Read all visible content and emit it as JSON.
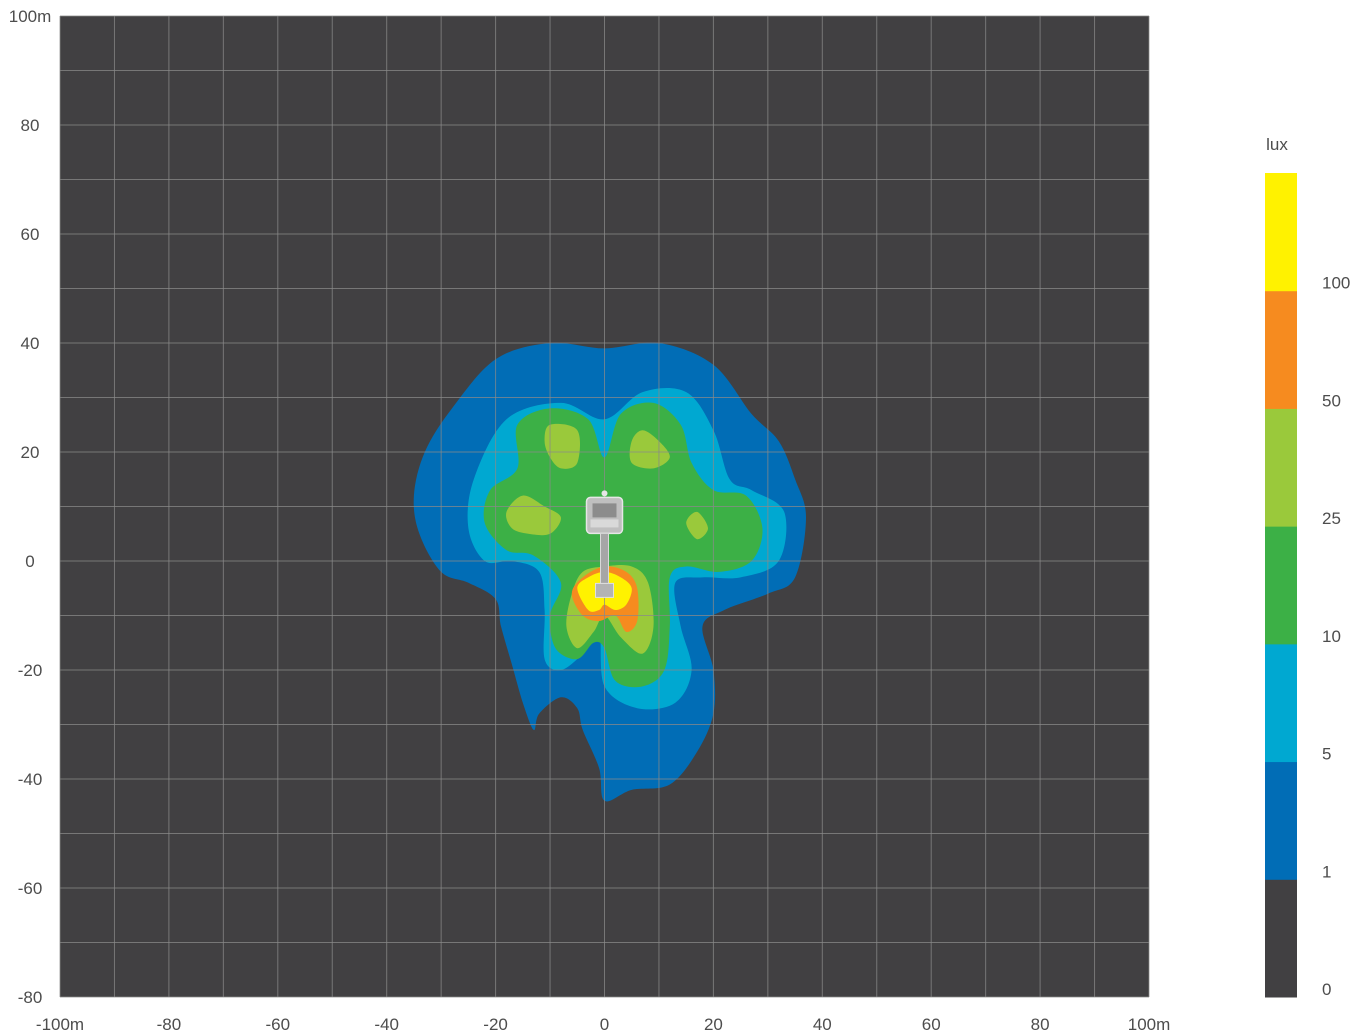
{
  "chart_data": {
    "type": "heatmap",
    "title": "",
    "x_ticks": [
      "-100m",
      "-80",
      "-60",
      "-40",
      "-20",
      "0",
      "20",
      "40",
      "60",
      "80",
      "100m"
    ],
    "y_ticks": [
      "100m",
      "80",
      "60",
      "40",
      "20",
      "0",
      "-20",
      "-40",
      "-60",
      "-80"
    ],
    "xlim": [
      -100,
      100
    ],
    "ylim": [
      -80,
      100
    ],
    "grid_step": 10,
    "grid": true,
    "background_color": "#414042",
    "grid_color": "#8a8a8a",
    "legend": {
      "title": "lux",
      "placement": "right",
      "bands": [
        {
          "from": 0,
          "to": 1,
          "color": "#414042"
        },
        {
          "from": 1,
          "to": 5,
          "color": "#016db6"
        },
        {
          "from": 5,
          "to": 10,
          "color": "#00a8d1"
        },
        {
          "from": 10,
          "to": 25,
          "color": "#3cb046"
        },
        {
          "from": 25,
          "to": 50,
          "color": "#9ac93b"
        },
        {
          "from": 50,
          "to": 100,
          "color": "#f68b1f"
        },
        {
          "from": 100,
          "to": null,
          "color": "#fff200"
        }
      ],
      "labels": [
        "0",
        "1",
        "5",
        "10",
        "25",
        "50",
        "100"
      ]
    },
    "contours": [
      {
        "level": "1",
        "color": "#016db6",
        "points": [
          [
            -35,
            12
          ],
          [
            -33,
            20
          ],
          [
            -28,
            28
          ],
          [
            -20,
            37
          ],
          [
            -10,
            40
          ],
          [
            0,
            39
          ],
          [
            10,
            40
          ],
          [
            20,
            36
          ],
          [
            27,
            27
          ],
          [
            32,
            22
          ],
          [
            35,
            15
          ],
          [
            37,
            8
          ],
          [
            35,
            -3
          ],
          [
            30,
            -6
          ],
          [
            22,
            -9
          ],
          [
            18,
            -12
          ],
          [
            20,
            -20
          ],
          [
            20,
            -28
          ],
          [
            17,
            -35
          ],
          [
            12,
            -41
          ],
          [
            5,
            -42
          ],
          [
            0,
            -44
          ],
          [
            -1,
            -38
          ],
          [
            -4,
            -31
          ],
          [
            -5,
            -27
          ],
          [
            -8,
            -25
          ],
          [
            -12,
            -28
          ],
          [
            -13,
            -31
          ],
          [
            -15,
            -26
          ],
          [
            -17,
            -19
          ],
          [
            -19,
            -12
          ],
          [
            -20,
            -7
          ],
          [
            -25,
            -4
          ],
          [
            -30,
            -2
          ],
          [
            -34,
            5
          ]
        ]
      },
      {
        "level": "5",
        "color": "#00a8d1",
        "points": [
          [
            -25,
            6
          ],
          [
            -24,
            15
          ],
          [
            -18,
            26
          ],
          [
            -8,
            29
          ],
          [
            0,
            26
          ],
          [
            7,
            31
          ],
          [
            15,
            31
          ],
          [
            20,
            24
          ],
          [
            23,
            15
          ],
          [
            27,
            13
          ],
          [
            33,
            9
          ],
          [
            32,
            0
          ],
          [
            25,
            -3
          ],
          [
            18,
            -3
          ],
          [
            13,
            -4
          ],
          [
            14,
            -12
          ],
          [
            16,
            -20
          ],
          [
            13,
            -26
          ],
          [
            6,
            -27
          ],
          [
            0,
            -23
          ],
          [
            -1,
            -13
          ],
          [
            -4,
            -17
          ],
          [
            -8,
            -20
          ],
          [
            -11,
            -18
          ],
          [
            -11,
            -9
          ],
          [
            -12,
            -2
          ],
          [
            -17,
            0
          ],
          [
            -22,
            0
          ]
        ]
      },
      {
        "level": "10",
        "color": "#3cb046",
        "points": [
          [
            -22,
            7
          ],
          [
            -21,
            13
          ],
          [
            -16,
            17
          ],
          [
            -16,
            25
          ],
          [
            -10,
            28
          ],
          [
            -3,
            26
          ],
          [
            0,
            19
          ],
          [
            3,
            27
          ],
          [
            9,
            29
          ],
          [
            14,
            25
          ],
          [
            16,
            18
          ],
          [
            20,
            13
          ],
          [
            26,
            12
          ],
          [
            29,
            6
          ],
          [
            27,
            0
          ],
          [
            21,
            -2
          ],
          [
            15,
            -1
          ],
          [
            12,
            -3
          ],
          [
            12,
            -12
          ],
          [
            11,
            -20
          ],
          [
            7,
            -23
          ],
          [
            2,
            -22
          ],
          [
            0,
            -16
          ],
          [
            -2,
            -15
          ],
          [
            -5,
            -18
          ],
          [
            -9,
            -16
          ],
          [
            -10,
            -10
          ],
          [
            -8,
            -4
          ],
          [
            -13,
            1
          ],
          [
            -18,
            2
          ]
        ]
      },
      {
        "level": "25",
        "color": "#9ac93b",
        "points": [
          [
            -18,
            9
          ],
          [
            -15,
            12
          ],
          [
            -11,
            10
          ],
          [
            -8,
            8
          ],
          [
            -10,
            5
          ],
          [
            -14,
            5
          ],
          [
            -17,
            6
          ]
        ]
      },
      {
        "level": "25",
        "color": "#9ac93b",
        "points": [
          [
            -11,
            22
          ],
          [
            -10,
            25
          ],
          [
            -5,
            24
          ],
          [
            -5,
            18
          ],
          [
            -8,
            17
          ],
          [
            -10,
            19
          ]
        ]
      },
      {
        "level": "25",
        "color": "#9ac93b",
        "points": [
          [
            5,
            22
          ],
          [
            7,
            24
          ],
          [
            10,
            22
          ],
          [
            12,
            19
          ],
          [
            9,
            17
          ],
          [
            5,
            18
          ]
        ]
      },
      {
        "level": "25",
        "color": "#9ac93b",
        "points": [
          [
            15,
            7
          ],
          [
            17,
            9
          ],
          [
            19,
            6
          ],
          [
            17,
            4
          ]
        ]
      },
      {
        "level": "25",
        "color": "#9ac93b",
        "points": [
          [
            -6,
            -6
          ],
          [
            -7,
            -12
          ],
          [
            -5,
            -16
          ],
          [
            -2,
            -13
          ],
          [
            0,
            -10
          ],
          [
            3,
            -14
          ],
          [
            7,
            -17
          ],
          [
            9,
            -12
          ],
          [
            8,
            -4
          ],
          [
            5,
            -1
          ],
          [
            0,
            -1
          ],
          [
            -4,
            -2
          ]
        ]
      },
      {
        "level": "50",
        "color": "#f68b1f",
        "points": [
          [
            -6,
            -6
          ],
          [
            -4,
            -10
          ],
          [
            -1,
            -11
          ],
          [
            2,
            -10
          ],
          [
            4,
            -13
          ],
          [
            6,
            -11
          ],
          [
            6,
            -5
          ],
          [
            4,
            -2
          ],
          [
            0,
            -1
          ],
          [
            -4,
            -3
          ]
        ]
      },
      {
        "level": "100",
        "color": "#fff200",
        "points": [
          [
            -5,
            -5
          ],
          [
            -3,
            -9
          ],
          [
            -1,
            -9
          ],
          [
            0,
            -8
          ],
          [
            2,
            -9
          ],
          [
            4,
            -8
          ],
          [
            5,
            -5
          ],
          [
            3,
            -3
          ],
          [
            0,
            -2
          ],
          [
            -3,
            -3
          ]
        ]
      }
    ]
  }
}
